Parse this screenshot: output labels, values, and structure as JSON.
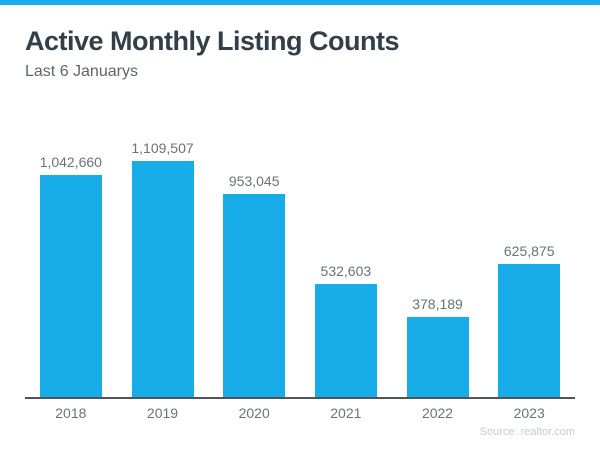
{
  "accent_color": "#18ACE8",
  "header": {
    "title": "Active Monthly Listing Counts",
    "subtitle": "Last 6 Januarys"
  },
  "footer": {
    "source": "Source: realtor.com"
  },
  "chart_data": {
    "type": "bar",
    "title": "Active Monthly Listing Counts",
    "subtitle": "Last 6 Januarys",
    "categories": [
      "2018",
      "2019",
      "2020",
      "2021",
      "2022",
      "2023"
    ],
    "values": [
      1042660,
      1109507,
      953045,
      532603,
      378189,
      625875
    ],
    "value_labels": [
      "1,042,660",
      "1,109,507",
      "953,045",
      "532,603",
      "378,189",
      "625,875"
    ],
    "xlabel": "",
    "ylabel": "",
    "ylim": [
      0,
      1109507
    ],
    "grid": false,
    "legend": false,
    "bar_color": "#18ACE8",
    "label_color": "#6B7278",
    "axis_color": "#4E5458",
    "source": "Source: realtor.com"
  }
}
